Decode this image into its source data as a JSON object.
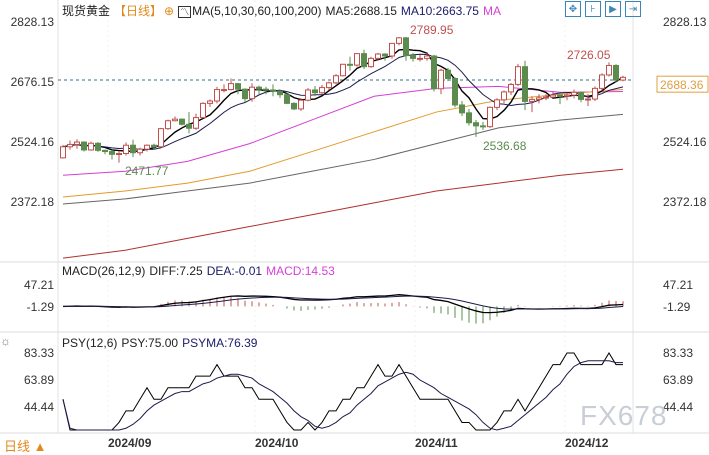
{
  "header": {
    "symbol": "现货黄金",
    "period": "【日线】",
    "settings_icon": "circle-plus-icon",
    "ma_icon": "chart-icon",
    "ma_label": "MA(5,10,30,60,100,200)",
    "ma5": "MA5:2688.15",
    "ma10": "MA10:2663.75",
    "ma_more": "MA"
  },
  "toolbar_icons": [
    "move-icon",
    "zoom-in-icon",
    "play-icon",
    "exit-icon"
  ],
  "macd_header": {
    "label": "MACD(26,12,9)",
    "diff": "DIFF:7.25",
    "dea": "DEA:-0.01",
    "macd": "MACD:14.53"
  },
  "psy_header": {
    "label": "PSY(12,6)",
    "psy": "PSY:75.00",
    "psyma": "PSYMA:76.39"
  },
  "footer": {
    "period_label": "日线 ▲"
  },
  "watermark": "FX678",
  "colors": {
    "up": "#c0504d",
    "down": "#5b8c4e",
    "ma5": "#000000",
    "ma10": "#1b1b4a",
    "ma30": "#d63fd6",
    "ma60": "#e39a2a",
    "ma100": "#666666",
    "ma200": "#b03030",
    "current": "#3a6f8a"
  },
  "chart_data": [
    {
      "type": "candlestick",
      "title": "现货黄金",
      "price_ticks": [
        "2828.13",
        "2676.15",
        "2524.16",
        "2372.18"
      ],
      "ylim": [
        2372.18,
        2828.13
      ],
      "x_ticks": [
        "2024/09",
        "2024/10",
        "2024/11",
        "2024/12"
      ],
      "current_price": "2688.36",
      "annotations": {
        "high": "2789.95",
        "low1": "2471.77",
        "low2": "2536.68",
        "high2": "2726.05"
      },
      "ohlc": [
        [
          2484,
          2517,
          2482,
          2512
        ],
        [
          2512,
          2528,
          2505,
          2518
        ],
        [
          2518,
          2531,
          2507,
          2524
        ],
        [
          2524,
          2526,
          2500,
          2504
        ],
        [
          2504,
          2525,
          2502,
          2521
        ],
        [
          2521,
          2524,
          2499,
          2503
        ],
        [
          2503,
          2505,
          2493,
          2500
        ],
        [
          2500,
          2504,
          2480,
          2493
        ],
        [
          2493,
          2500,
          2472,
          2495
        ],
        [
          2495,
          2523,
          2490,
          2516
        ],
        [
          2516,
          2530,
          2486,
          2497
        ],
        [
          2497,
          2510,
          2490,
          2506
        ],
        [
          2506,
          2518,
          2500,
          2516
        ],
        [
          2516,
          2520,
          2505,
          2512
        ],
        [
          2512,
          2560,
          2510,
          2558
        ],
        [
          2558,
          2581,
          2555,
          2578
        ],
        [
          2578,
          2589,
          2576,
          2582
        ],
        [
          2582,
          2584,
          2566,
          2569
        ],
        [
          2569,
          2600,
          2546,
          2559
        ],
        [
          2559,
          2596,
          2555,
          2586
        ],
        [
          2586,
          2625,
          2584,
          2622
        ],
        [
          2622,
          2632,
          2613,
          2628
        ],
        [
          2628,
          2664,
          2622,
          2657
        ],
        [
          2657,
          2670,
          2650,
          2657
        ],
        [
          2657,
          2685,
          2655,
          2672
        ],
        [
          2672,
          2674,
          2645,
          2658
        ],
        [
          2658,
          2660,
          2625,
          2634
        ],
        [
          2634,
          2673,
          2626,
          2663
        ],
        [
          2663,
          2667,
          2645,
          2658
        ],
        [
          2658,
          2664,
          2645,
          2656
        ],
        [
          2656,
          2670,
          2640,
          2653
        ],
        [
          2653,
          2656,
          2636,
          2644
        ],
        [
          2644,
          2648,
          2620,
          2622
        ],
        [
          2622,
          2625,
          2605,
          2608
        ],
        [
          2608,
          2635,
          2603,
          2630
        ],
        [
          2630,
          2661,
          2627,
          2656
        ],
        [
          2656,
          2666,
          2640,
          2649
        ],
        [
          2649,
          2669,
          2645,
          2662
        ],
        [
          2662,
          2677,
          2656,
          2674
        ],
        [
          2674,
          2696,
          2670,
          2692
        ],
        [
          2692,
          2722,
          2690,
          2721
        ],
        [
          2721,
          2740,
          2705,
          2719
        ],
        [
          2719,
          2749,
          2715,
          2748
        ],
        [
          2748,
          2758,
          2709,
          2715
        ],
        [
          2715,
          2740,
          2712,
          2736
        ],
        [
          2736,
          2750,
          2730,
          2747
        ],
        [
          2747,
          2749,
          2730,
          2742
        ],
        [
          2742,
          2775,
          2735,
          2774
        ],
        [
          2774,
          2790,
          2769,
          2788
        ],
        [
          2788,
          2790,
          2730,
          2743
        ],
        [
          2743,
          2750,
          2728,
          2736
        ],
        [
          2736,
          2745,
          2728,
          2736
        ],
        [
          2736,
          2750,
          2730,
          2742
        ],
        [
          2742,
          2745,
          2652,
          2659
        ],
        [
          2659,
          2710,
          2645,
          2706
        ],
        [
          2706,
          2712,
          2678,
          2685
        ],
        [
          2685,
          2688,
          2612,
          2618
        ],
        [
          2618,
          2628,
          2590,
          2598
        ],
        [
          2598,
          2608,
          2566,
          2573
        ],
        [
          2573,
          2580,
          2537,
          2565
        ],
        [
          2565,
          2575,
          2555,
          2563
        ],
        [
          2563,
          2614,
          2560,
          2612
        ],
        [
          2612,
          2635,
          2605,
          2631
        ],
        [
          2631,
          2655,
          2623,
          2651
        ],
        [
          2651,
          2674,
          2643,
          2670
        ],
        [
          2670,
          2722,
          2666,
          2715
        ],
        [
          2715,
          2730,
          2605,
          2627
        ],
        [
          2627,
          2640,
          2600,
          2632
        ],
        [
          2632,
          2645,
          2622,
          2636
        ],
        [
          2636,
          2645,
          2630,
          2638
        ],
        [
          2638,
          2652,
          2635,
          2643
        ],
        [
          2643,
          2645,
          2620,
          2640
        ],
        [
          2640,
          2648,
          2630,
          2643
        ],
        [
          2643,
          2657,
          2635,
          2650
        ],
        [
          2650,
          2652,
          2625,
          2632
        ],
        [
          2632,
          2646,
          2615,
          2633
        ],
        [
          2633,
          2665,
          2628,
          2660
        ],
        [
          2660,
          2698,
          2655,
          2694
        ],
        [
          2694,
          2726,
          2690,
          2718
        ],
        [
          2718,
          2721,
          2675,
          2681
        ],
        [
          2681,
          2692,
          2678,
          2688
        ]
      ],
      "long_ma": {
        "ma30": [
          2440,
          2450,
          2475,
          2520,
          2580,
          2640,
          2660,
          2665,
          2650,
          2652
        ],
        "ma60": [
          2385,
          2400,
          2420,
          2450,
          2500,
          2550,
          2600,
          2630,
          2645,
          2657
        ],
        "ma100": [
          2367,
          2380,
          2400,
          2420,
          2450,
          2480,
          2520,
          2560,
          2580,
          2594
        ],
        "ma200": [
          2230,
          2250,
          2280,
          2310,
          2340,
          2370,
          2400,
          2420,
          2440,
          2455
        ]
      }
    },
    {
      "type": "line",
      "title": "MACD(26,12,9)",
      "y_ticks": [
        "47.21",
        "-1.29"
      ]
    },
    {
      "type": "line",
      "title": "PSY(12,6)",
      "y_ticks": [
        "83.33",
        "63.89",
        "44.44"
      ]
    }
  ]
}
